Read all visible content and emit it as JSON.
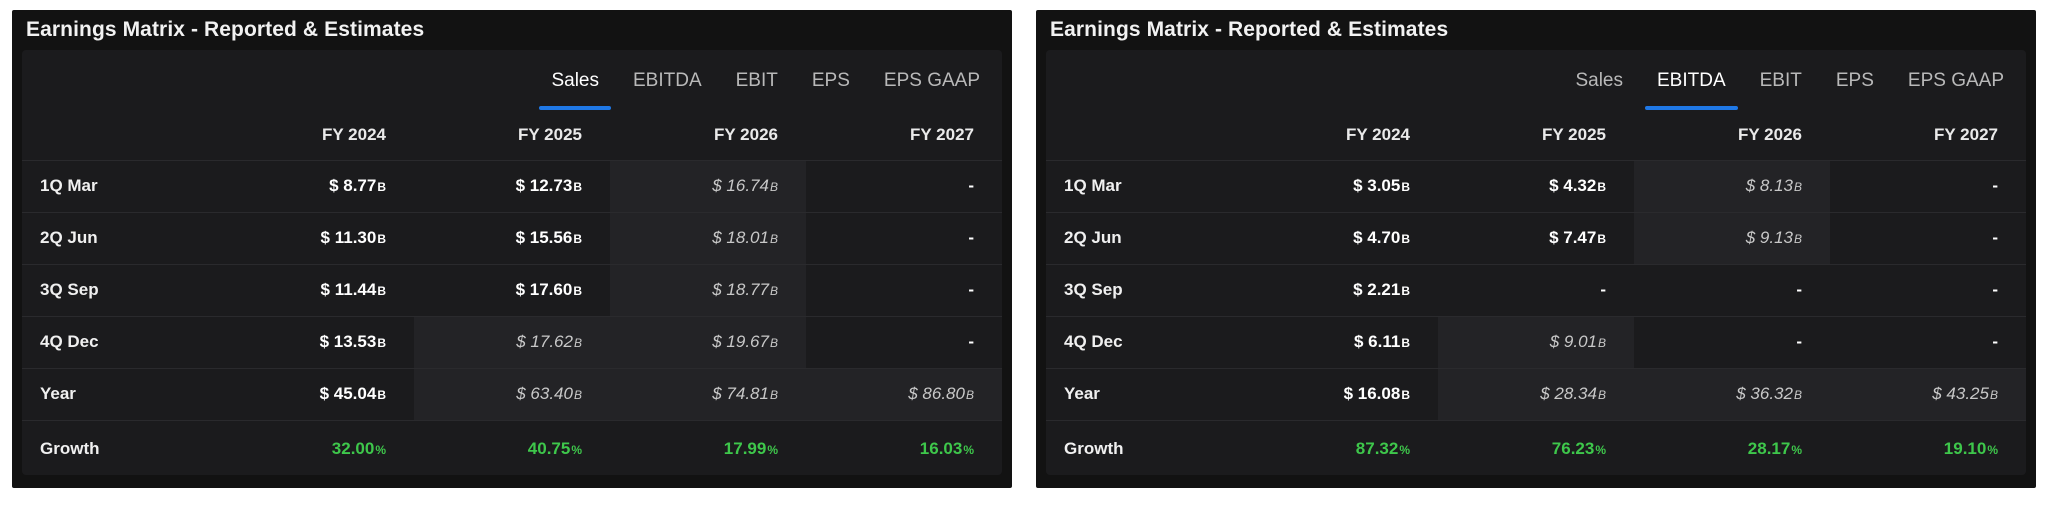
{
  "panels": [
    {
      "title": "Earnings Matrix - Reported & Estimates",
      "tabs": [
        "Sales",
        "EBITDA",
        "EBIT",
        "EPS",
        "EPS GAAP"
      ],
      "active_tab": "Sales",
      "columns": [
        "FY 2024",
        "FY 2025",
        "FY 2026",
        "FY 2027"
      ],
      "rows": [
        {
          "label": "1Q Mar",
          "cells": [
            {
              "value": "$ 8.77",
              "unit": "B",
              "estimate": false
            },
            {
              "value": "$ 12.73",
              "unit": "B",
              "estimate": false
            },
            {
              "value": "$ 16.74",
              "unit": "B",
              "estimate": true
            },
            {
              "value": "-",
              "unit": "",
              "estimate": false
            }
          ]
        },
        {
          "label": "2Q Jun",
          "cells": [
            {
              "value": "$ 11.30",
              "unit": "B",
              "estimate": false
            },
            {
              "value": "$ 15.56",
              "unit": "B",
              "estimate": false
            },
            {
              "value": "$ 18.01",
              "unit": "B",
              "estimate": true
            },
            {
              "value": "-",
              "unit": "",
              "estimate": false
            }
          ]
        },
        {
          "label": "3Q Sep",
          "cells": [
            {
              "value": "$ 11.44",
              "unit": "B",
              "estimate": false
            },
            {
              "value": "$ 17.60",
              "unit": "B",
              "estimate": false
            },
            {
              "value": "$ 18.77",
              "unit": "B",
              "estimate": true
            },
            {
              "value": "-",
              "unit": "",
              "estimate": false
            }
          ]
        },
        {
          "label": "4Q Dec",
          "cells": [
            {
              "value": "$ 13.53",
              "unit": "B",
              "estimate": false
            },
            {
              "value": "$ 17.62",
              "unit": "B",
              "estimate": true
            },
            {
              "value": "$ 19.67",
              "unit": "B",
              "estimate": true
            },
            {
              "value": "-",
              "unit": "",
              "estimate": false
            }
          ]
        },
        {
          "label": "Year",
          "cells": [
            {
              "value": "$ 45.04",
              "unit": "B",
              "estimate": false
            },
            {
              "value": "$ 63.40",
              "unit": "B",
              "estimate": true
            },
            {
              "value": "$ 74.81",
              "unit": "B",
              "estimate": true
            },
            {
              "value": "$ 86.80",
              "unit": "B",
              "estimate": true
            }
          ]
        }
      ],
      "growth": {
        "label": "Growth",
        "values": [
          "32.00",
          "40.75",
          "17.99",
          "16.03"
        ],
        "unit": "%"
      }
    },
    {
      "title": "Earnings Matrix - Reported & Estimates",
      "tabs": [
        "Sales",
        "EBITDA",
        "EBIT",
        "EPS",
        "EPS GAAP"
      ],
      "active_tab": "EBITDA",
      "columns": [
        "FY 2024",
        "FY 2025",
        "FY 2026",
        "FY 2027"
      ],
      "rows": [
        {
          "label": "1Q Mar",
          "cells": [
            {
              "value": "$ 3.05",
              "unit": "B",
              "estimate": false
            },
            {
              "value": "$ 4.32",
              "unit": "B",
              "estimate": false
            },
            {
              "value": "$ 8.13",
              "unit": "B",
              "estimate": true
            },
            {
              "value": "-",
              "unit": "",
              "estimate": false
            }
          ]
        },
        {
          "label": "2Q Jun",
          "cells": [
            {
              "value": "$ 4.70",
              "unit": "B",
              "estimate": false
            },
            {
              "value": "$ 7.47",
              "unit": "B",
              "estimate": false
            },
            {
              "value": "$ 9.13",
              "unit": "B",
              "estimate": true
            },
            {
              "value": "-",
              "unit": "",
              "estimate": false
            }
          ]
        },
        {
          "label": "3Q Sep",
          "cells": [
            {
              "value": "$ 2.21",
              "unit": "B",
              "estimate": false
            },
            {
              "value": "-",
              "unit": "",
              "estimate": false
            },
            {
              "value": "-",
              "unit": "",
              "estimate": false
            },
            {
              "value": "-",
              "unit": "",
              "estimate": false
            }
          ]
        },
        {
          "label": "4Q Dec",
          "cells": [
            {
              "value": "$ 6.11",
              "unit": "B",
              "estimate": false
            },
            {
              "value": "$ 9.01",
              "unit": "B",
              "estimate": true
            },
            {
              "value": "-",
              "unit": "",
              "estimate": false
            },
            {
              "value": "-",
              "unit": "",
              "estimate": false
            }
          ]
        },
        {
          "label": "Year",
          "cells": [
            {
              "value": "$ 16.08",
              "unit": "B",
              "estimate": false
            },
            {
              "value": "$ 28.34",
              "unit": "B",
              "estimate": true
            },
            {
              "value": "$ 36.32",
              "unit": "B",
              "estimate": true
            },
            {
              "value": "$ 43.25",
              "unit": "B",
              "estimate": true
            }
          ]
        }
      ],
      "growth": {
        "label": "Growth",
        "values": [
          "87.32",
          "76.23",
          "28.17",
          "19.10"
        ],
        "unit": "%"
      }
    }
  ],
  "colors": {
    "accent": "#1f78e6",
    "growth": "#3ec74b",
    "panel_bg": "#121212",
    "card_bg": "#1b1b1d"
  }
}
